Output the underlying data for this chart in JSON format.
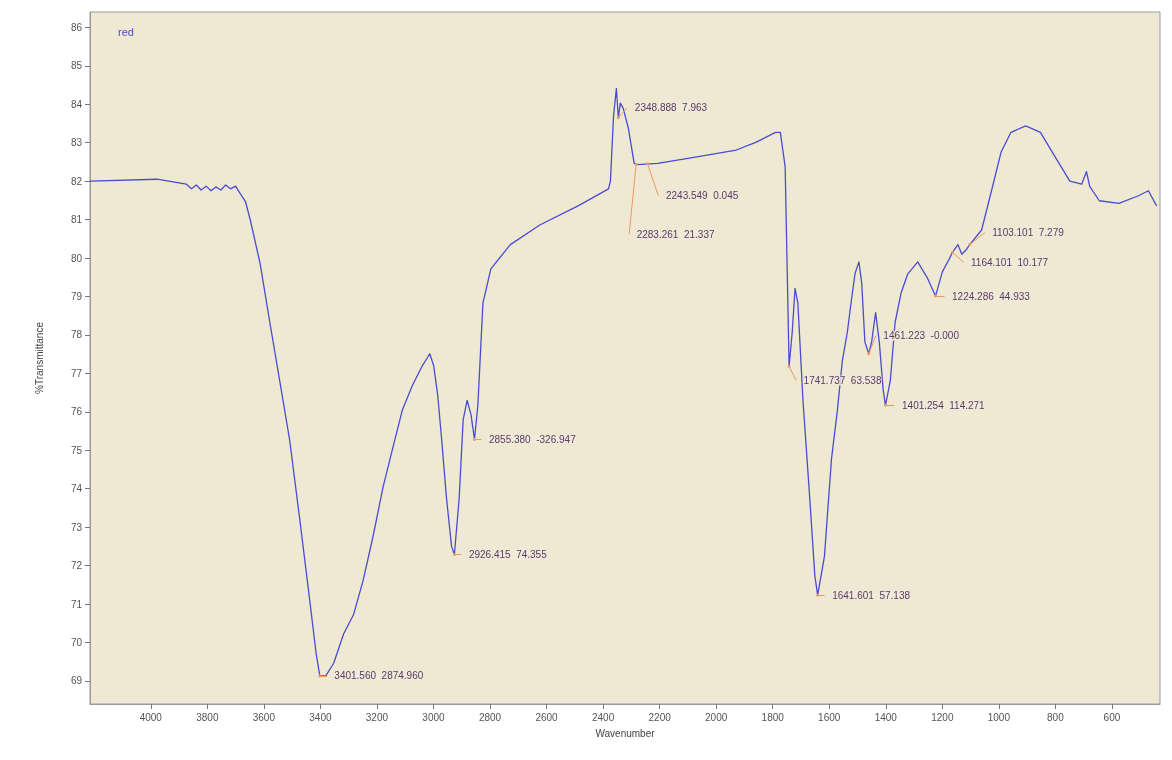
{
  "chart_data": {
    "type": "line",
    "xlabel": "Wavenumber",
    "ylabel": "%Transmittance",
    "xlim": [
      4215,
      430
    ],
    "xticks": [
      4000,
      3800,
      3600,
      3400,
      3200,
      3000,
      2800,
      2600,
      2400,
      2200,
      2000,
      1800,
      1600,
      1400,
      1200,
      1000,
      800,
      600
    ],
    "ylim": [
      68.4,
      86.4
    ],
    "yticks": [
      69,
      70,
      71,
      72,
      73,
      74,
      75,
      76,
      77,
      78,
      79,
      80,
      81,
      82,
      83,
      84,
      85,
      86
    ],
    "grid": false,
    "legend": "top left",
    "marker": "none",
    "line_style": "solid",
    "series": [
      {
        "name": "red",
        "color": "#4b4bd0",
        "x": [
          4214,
          3978,
          3874,
          3856,
          3839,
          3822,
          3804,
          3787,
          3770,
          3752,
          3735,
          3718,
          3700,
          3683,
          3665,
          3648,
          3613,
          3579,
          3544,
          3509,
          3474,
          3440,
          3415,
          3402,
          3381,
          3353,
          3318,
          3283,
          3249,
          3214,
          3179,
          3145,
          3110,
          3075,
          3040,
          3013,
          2999,
          2985,
          2971,
          2954,
          2936,
          2926,
          2909,
          2895,
          2881,
          2867,
          2855,
          2843,
          2825,
          2797,
          2728,
          2624,
          2485,
          2381,
          2374,
          2363,
          2353,
          2346,
          2339,
          2329,
          2311,
          2290,
          2277,
          2207,
          2068,
          1929,
          1860,
          1790,
          1773,
          1756,
          1742,
          1731,
          1721,
          1711,
          1693,
          1669,
          1651,
          1641,
          1617,
          1592,
          1571,
          1554,
          1536,
          1523,
          1509,
          1495,
          1485,
          1474,
          1460,
          1450,
          1436,
          1423,
          1409,
          1401,
          1384,
          1367,
          1346,
          1322,
          1287,
          1252,
          1224,
          1200,
          1176,
          1164,
          1145,
          1131,
          1114,
          1103,
          1061,
          1026,
          992,
          957,
          905,
          853,
          801,
          749,
          707,
          690,
          679,
          645,
          575,
          506,
          471,
          443
        ],
        "values": [
          82.0,
          82.05,
          81.92,
          81.8,
          81.9,
          81.77,
          81.87,
          81.75,
          81.85,
          81.77,
          81.9,
          81.8,
          81.87,
          81.67,
          81.47,
          80.99,
          79.85,
          78.33,
          76.81,
          75.28,
          73.26,
          71.23,
          69.71,
          69.13,
          69.13,
          69.46,
          70.22,
          70.72,
          71.61,
          72.75,
          74.02,
          75.03,
          76.05,
          76.68,
          77.19,
          77.51,
          77.19,
          76.43,
          75.28,
          73.76,
          72.5,
          72.29,
          73.76,
          75.79,
          76.3,
          75.92,
          75.28,
          76.17,
          78.83,
          79.72,
          80.35,
          80.86,
          81.37,
          81.8,
          82.0,
          83.7,
          84.41,
          83.65,
          84.03,
          83.9,
          83.39,
          82.46,
          82.43,
          82.46,
          82.63,
          82.81,
          83.01,
          83.27,
          83.27,
          82.38,
          77.18,
          78.07,
          79.21,
          78.83,
          76.3,
          73.76,
          71.74,
          71.23,
          72.24,
          74.78,
          76.05,
          77.31,
          78.07,
          78.83,
          79.59,
          79.9,
          79.34,
          77.82,
          77.51,
          77.82,
          78.58,
          77.82,
          76.55,
          76.17,
          76.81,
          78.33,
          79.09,
          79.59,
          79.9,
          79.47,
          79.01,
          79.64,
          79.97,
          80.15,
          80.35,
          80.1,
          80.23,
          80.35,
          80.73,
          81.75,
          82.76,
          83.27,
          83.44,
          83.27,
          82.63,
          82.0,
          81.92,
          82.25,
          81.87,
          81.49,
          81.42,
          81.62,
          81.75,
          81.37
        ]
      }
    ],
    "annotations": [
      {
        "text": "3401.560  2874.960",
        "x": 3402,
        "y": 69.13
      },
      {
        "text": "2926.415  74.355",
        "x": 2926,
        "y": 72.29
      },
      {
        "text": "2855.380  -326.947",
        "x": 2855,
        "y": 75.28
      },
      {
        "text": "2348.888  7.963",
        "x": 2346,
        "y": 83.65
      },
      {
        "text": "2283.261  21.337",
        "x": 2283,
        "y": 82.44
      },
      {
        "text": "2243.549  0.045",
        "x": 2243,
        "y": 82.45
      },
      {
        "text": "1741.737  63.538",
        "x": 1742,
        "y": 77.18
      },
      {
        "text": "1641.601  57.138",
        "x": 1641,
        "y": 71.23
      },
      {
        "text": "1461.223  -0.000",
        "x": 1460,
        "y": 77.51
      },
      {
        "text": "1401.254  114.271",
        "x": 1401,
        "y": 76.17
      },
      {
        "text": "1224.286  44.933",
        "x": 1224,
        "y": 79.01
      },
      {
        "text": "1164.101  10.177",
        "x": 1164,
        "y": 80.15
      },
      {
        "text": "1103.101  7.279",
        "x": 1103,
        "y": 80.35
      }
    ]
  }
}
